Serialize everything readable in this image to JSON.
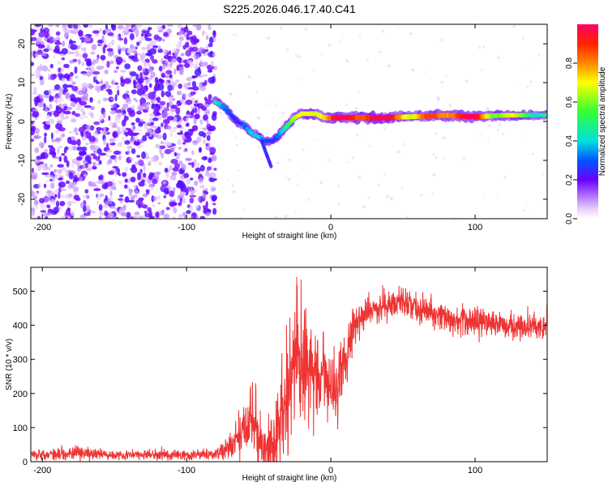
{
  "title": "S225.2026.046.17.40.C41",
  "colors": {
    "snr_line": "#ee3333",
    "axis": "#000000",
    "scatter_purple": "#7a22f0",
    "scatter_light": "#d2b8f8"
  },
  "chart_data": [
    {
      "type": "heatmap",
      "name": "spectrogram",
      "xlabel": "Height of straight line (km)",
      "ylabel": "Frequency (Hz)",
      "xlim": [
        -208,
        150
      ],
      "ylim": [
        -25,
        25
      ],
      "xticks": [
        -200,
        -100,
        0,
        100
      ],
      "xtick_labels": [
        "-200",
        "-100",
        "0",
        "100"
      ],
      "yticks": [
        -20,
        -10,
        0,
        10,
        20
      ],
      "ytick_labels": [
        "-20",
        "-10",
        "0",
        "10",
        "20"
      ],
      "noise_region": {
        "x_range": [
          -208,
          -80
        ],
        "y_range": [
          -25,
          25
        ]
      },
      "signal_track": {
        "x": [
          -80,
          -75,
          -70,
          -65,
          -60,
          -55,
          -50,
          -45,
          -40,
          -35,
          -30,
          -25,
          -20,
          -15,
          -10,
          -5,
          0,
          10,
          20,
          40,
          60,
          80,
          100,
          120,
          150
        ],
        "y": [
          5,
          4,
          2,
          0,
          -1,
          -3,
          -4,
          -5,
          -5,
          -3,
          -1,
          1,
          2,
          2,
          2,
          1,
          1,
          1,
          1,
          1,
          1.3,
          1.6,
          1.2,
          1.6,
          1.7
        ],
        "amplitude": [
          0.35,
          0.35,
          0.35,
          0.3,
          0.3,
          0.3,
          0.3,
          0.3,
          0.35,
          0.45,
          0.5,
          0.55,
          0.6,
          0.7,
          0.75,
          0.8,
          0.85,
          0.9,
          0.95,
          0.95,
          0.7,
          0.9,
          0.9,
          0.6,
          0.5
        ]
      },
      "colorbar": {
        "label": "Normalized spectral amplitude",
        "range": [
          0,
          1
        ],
        "ticks": [
          0.0,
          0.2,
          0.4,
          0.6,
          0.8
        ],
        "tick_labels": [
          "0.0",
          "0.2",
          "0.4",
          "0.6",
          "0.8"
        ]
      }
    },
    {
      "type": "line",
      "name": "snr",
      "xlabel": "Height of straight line (km)",
      "ylabel": "SNR (10 * v/v)",
      "xlim": [
        -208,
        150
      ],
      "ylim": [
        0,
        570
      ],
      "xticks": [
        -200,
        -100,
        0,
        100
      ],
      "xtick_labels": [
        "-200",
        "-100",
        "0",
        "100"
      ],
      "yticks": [
        0,
        100,
        200,
        300,
        400,
        500
      ],
      "ytick_labels": [
        "0",
        "100",
        "200",
        "300",
        "400",
        "500"
      ],
      "series": [
        {
          "name": "SNR",
          "envelope_x": [
            -208,
            -180,
            -150,
            -100,
            -80,
            -75,
            -70,
            -65,
            -60,
            -55,
            -50,
            -45,
            -40,
            -35,
            -30,
            -25,
            -20,
            -15,
            -10,
            -5,
            0,
            5,
            10,
            15,
            20,
            30,
            40,
            50,
            60,
            80,
            100,
            120,
            150
          ],
          "envelope_mean": [
            20,
            25,
            20,
            20,
            20,
            30,
            40,
            60,
            100,
            120,
            80,
            30,
            30,
            120,
            200,
            290,
            280,
            280,
            260,
            240,
            220,
            240,
            300,
            380,
            420,
            450,
            460,
            470,
            450,
            420,
            410,
            400,
            400
          ],
          "envelope_spread": [
            12,
            20,
            12,
            15,
            15,
            25,
            35,
            60,
            80,
            90,
            80,
            60,
            80,
            150,
            160,
            180,
            170,
            140,
            130,
            120,
            110,
            90,
            80,
            60,
            50,
            40,
            40,
            40,
            40,
            40,
            40,
            35,
            35
          ]
        }
      ]
    }
  ]
}
